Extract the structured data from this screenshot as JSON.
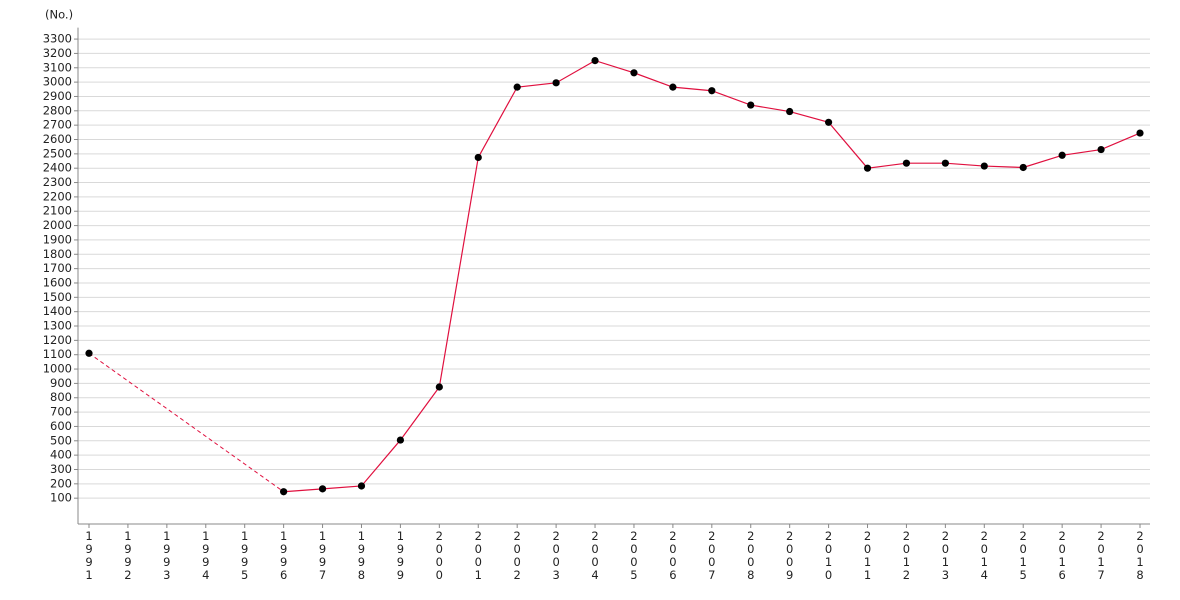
{
  "chart_data": {
    "type": "line",
    "y_label": "(No.)",
    "categories": [
      "1991",
      "1992",
      "1993",
      "1994",
      "1995",
      "1996",
      "1997",
      "1998",
      "1999",
      "2000",
      "2001",
      "2002",
      "2003",
      "2004",
      "2005",
      "2006",
      "2007",
      "2008",
      "2009",
      "2010",
      "2011",
      "2012",
      "2013",
      "2014",
      "2015",
      "2016",
      "2017",
      "2018"
    ],
    "series": [
      {
        "color": "#e0103f",
        "marker_color": "#000000",
        "values": [
          1110,
          null,
          null,
          null,
          null,
          145,
          165,
          185,
          505,
          875,
          2475,
          2965,
          2995,
          3150,
          3065,
          2965,
          2940,
          2840,
          2795,
          2720,
          2400,
          2435,
          2435,
          2415,
          2405,
          2490,
          2530,
          2645
        ]
      }
    ],
    "gap_style": "dashed",
    "ylim": [
      -80,
      3380
    ],
    "yticks": [
      100,
      200,
      300,
      400,
      500,
      600,
      700,
      800,
      900,
      1000,
      1100,
      1200,
      1300,
      1400,
      1500,
      1600,
      1700,
      1800,
      1900,
      2000,
      2100,
      2200,
      2300,
      2400,
      2500,
      2600,
      2700,
      2800,
      2900,
      3000,
      3100,
      3200,
      3300
    ],
    "grid": true
  }
}
